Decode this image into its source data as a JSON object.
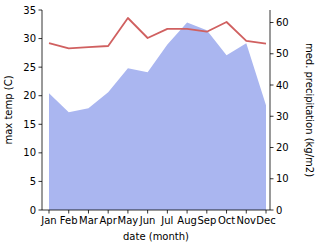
{
  "chart_data": {
    "type": "line",
    "categories": [
      "Jan",
      "Feb",
      "Mar",
      "Apr",
      "May",
      "Jun",
      "Jul",
      "Aug",
      "Sep",
      "Oct",
      "Nov",
      "Dec"
    ],
    "x_label": "date (month)",
    "y_label": "max temp (C)",
    "y2_label": "med. precipitation (kg/m2)",
    "ylim": [
      0,
      35
    ],
    "yticks": [
      0,
      5,
      10,
      15,
      20,
      25,
      30,
      35
    ],
    "y2lim": [
      0,
      64
    ],
    "y2ticks": [
      0,
      10,
      20,
      30,
      40,
      50,
      60
    ],
    "grid": false,
    "series": [
      {
        "name": "max temp",
        "type": "line",
        "color": "#d06060",
        "values": [
          29.2,
          28.3,
          28.5,
          28.7,
          33.6,
          30.1,
          31.7,
          31.7,
          31.2,
          32.9,
          29.6,
          29.1
        ]
      },
      {
        "name": "med. precipitation",
        "type": "area",
        "axis": "y2",
        "color": "#aab6f0",
        "values": [
          37.4,
          31.3,
          32.6,
          37.7,
          45.4,
          44.1,
          53.0,
          60.0,
          57.5,
          49.5,
          53.4,
          33.5
        ]
      }
    ]
  }
}
